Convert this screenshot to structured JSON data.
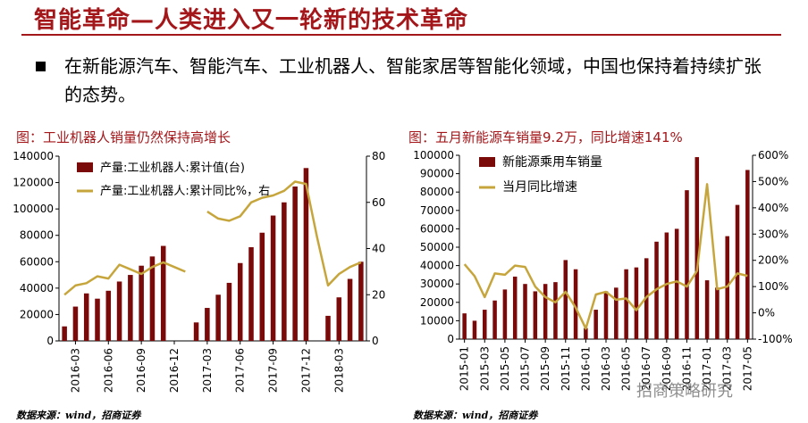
{
  "header": {
    "title": "智能革命—人类进入又一轮新的技术革命",
    "bullet": "在新能源汽车、智能汽车、工业机器人、智能家居等智能化领域，中国也保持着持续扩张的态势。"
  },
  "colors": {
    "accent": "#a3171b",
    "bar": "#7a0a0a",
    "line": "#c6a63c"
  },
  "source_left": "数据来源：wind，招商证券",
  "source_right": "数据来源：wind，招商证券",
  "watermark": "招商策略研究",
  "chart_data": [
    {
      "type": "bar+line",
      "title": "图：工业机器人销量仍然保持高增长",
      "legend": [
        "产量:工业机器人:累计值(台)",
        "产量:工业机器人:累计同比%，右"
      ],
      "legend_position": "top-left",
      "categories": [
        "2016-02",
        "2016-03",
        "2016-04",
        "2016-05",
        "2016-06",
        "2016-07",
        "2016-08",
        "2016-09",
        "2016-10",
        "2016-11",
        "2016-12",
        "2017-01",
        "2017-02",
        "2017-03",
        "2017-04",
        "2017-05",
        "2017-06",
        "2017-07",
        "2017-08",
        "2017-09",
        "2017-10",
        "2017-11",
        "2017-12",
        "2018-01",
        "2018-02",
        "2018-03",
        "2018-04",
        "2018-05"
      ],
      "x_tick_labels": [
        "2016-03",
        "2016-06",
        "2016-09",
        "2016-12",
        "2017-03",
        "2017-06",
        "2017-09",
        "2017-12",
        "2018-03"
      ],
      "series": [
        {
          "name": "产量:工业机器人:累计值(台)",
          "axis": "left",
          "values": [
            11000,
            26000,
            36000,
            32000,
            38000,
            45000,
            50000,
            57000,
            64000,
            72000,
            null,
            null,
            14000,
            25000,
            35000,
            44000,
            59000,
            71000,
            82000,
            95000,
            105000,
            117000,
            131000,
            null,
            19000,
            33000,
            47000,
            60000
          ]
        },
        {
          "name": "产量:工业机器人:累计同比%，右",
          "axis": "right",
          "values": [
            20,
            24,
            25,
            28,
            27,
            33,
            31,
            29,
            32,
            34,
            32,
            30,
            null,
            56,
            53,
            52,
            54,
            60,
            62,
            63,
            65,
            69,
            68,
            45,
            24,
            29,
            32,
            34
          ]
        }
      ],
      "y_left": {
        "ylim": [
          0,
          140000
        ],
        "ticks": [
          0,
          20000,
          40000,
          60000,
          80000,
          100000,
          120000,
          140000
        ]
      },
      "y_right": {
        "ylim": [
          0,
          80
        ],
        "ticks": [
          0,
          20,
          40,
          60,
          80
        ]
      },
      "grid": false
    },
    {
      "type": "bar+line",
      "title": "图：五月新能源车销量9.2万，同比增速141%",
      "legend": [
        "新能源乘用车销量",
        "当月同比增速"
      ],
      "legend_position": "top-left",
      "categories": [
        "2015-01",
        "2015-02",
        "2015-03",
        "2015-04",
        "2015-05",
        "2015-06",
        "2015-07",
        "2015-08",
        "2015-09",
        "2015-10",
        "2015-11",
        "2015-12",
        "2016-01",
        "2016-02",
        "2016-03",
        "2016-04",
        "2016-05",
        "2016-06",
        "2016-07",
        "2016-08",
        "2016-09",
        "2016-10",
        "2016-11",
        "2016-12",
        "2017-01",
        "2017-02",
        "2017-03",
        "2017-04",
        "2017-05"
      ],
      "x_tick_labels": [
        "2015-01",
        "2015-03",
        "2015-05",
        "2015-07",
        "2015-09",
        "2015-11",
        "2016-01",
        "2016-03",
        "2016-05",
        "2016-07",
        "2016-09",
        "2016-11",
        "2017-01",
        "2017-03",
        "2017-05"
      ],
      "series": [
        {
          "name": "新能源乘用车销量",
          "axis": "left",
          "values": [
            14000,
            10000,
            16000,
            21000,
            27000,
            34000,
            30000,
            26000,
            30000,
            31000,
            43000,
            38000,
            6000,
            16000,
            26000,
            28000,
            38000,
            39000,
            44000,
            53000,
            58000,
            60000,
            81000,
            99000,
            32000,
            28000,
            56000,
            73000,
            92000
          ]
        },
        {
          "name": "当月同比增速",
          "axis": "right",
          "values": [
            185,
            140,
            60,
            150,
            145,
            180,
            175,
            100,
            60,
            40,
            80,
            20,
            -60,
            70,
            80,
            50,
            55,
            10,
            60,
            90,
            110,
            120,
            100,
            160,
            490,
            90,
            100,
            150,
            141
          ]
        }
      ],
      "y_left": {
        "ylim": [
          0,
          100000
        ],
        "ticks": [
          0,
          10000,
          20000,
          30000,
          40000,
          50000,
          60000,
          70000,
          80000,
          90000,
          100000
        ]
      },
      "y_right": {
        "ylim": [
          -100,
          600
        ],
        "ticks": [
          "-100%",
          "0%",
          "100%",
          "200%",
          "300%",
          "400%",
          "500%",
          "600%"
        ]
      },
      "grid": false
    }
  ]
}
